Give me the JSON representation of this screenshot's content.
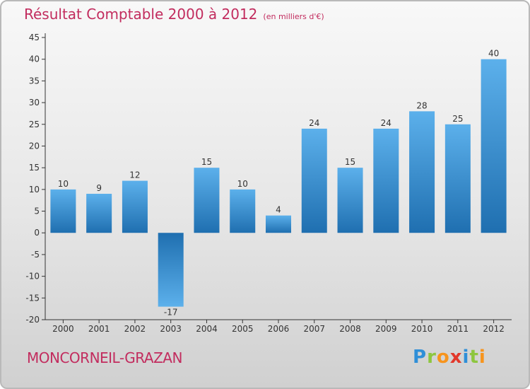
{
  "title": "Résultat Comptable 2000 à 2012",
  "subtitle": "(en milliers d'€)",
  "commune": "MONCORNEIL-GRAZAN",
  "logo": {
    "letters": [
      "P",
      "r",
      "o",
      "x",
      "i",
      "t",
      "i"
    ],
    "colors": [
      "#2f8fd8",
      "#8dc63f",
      "#f7941d",
      "#e2382b",
      "#2f8fd8",
      "#8dc63f",
      "#f7941d"
    ]
  },
  "colors": {
    "title": "#c22c5e",
    "bar_top": "#5cb0eb",
    "bar_bottom": "#1f6fb0"
  },
  "chart_data": {
    "type": "bar",
    "title": "Résultat Comptable 2000 à 2012",
    "subtitle": "(en milliers d'€)",
    "categories": [
      "2000",
      "2001",
      "2002",
      "2003",
      "2004",
      "2005",
      "2006",
      "2007",
      "2008",
      "2009",
      "2010",
      "2011",
      "2012"
    ],
    "values": [
      10,
      9,
      12,
      -17,
      15,
      10,
      4,
      24,
      15,
      24,
      28,
      25,
      40
    ],
    "data_labels": [
      "10",
      "9",
      "12",
      "-17",
      "15",
      "10",
      "4",
      "24",
      "15",
      "24",
      "28",
      "25",
      "40"
    ],
    "ylim": [
      -20,
      45
    ],
    "yticks": [
      -20,
      -15,
      -10,
      -5,
      0,
      5,
      10,
      15,
      20,
      25,
      30,
      35,
      40,
      45
    ],
    "grid": false,
    "legend": "none"
  }
}
